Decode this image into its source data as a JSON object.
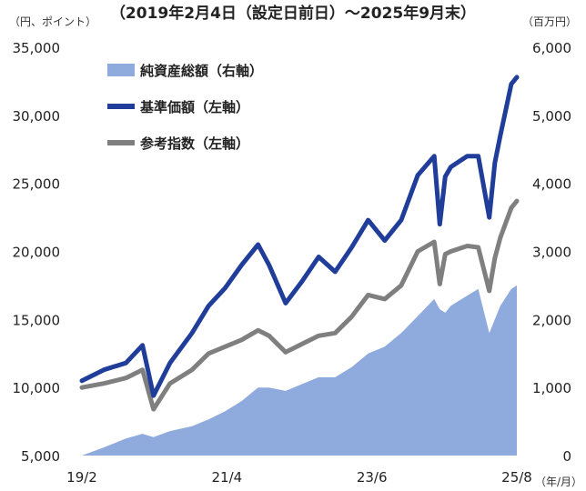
{
  "chart_data": {
    "type": "line",
    "title": "（2019年2月4日（設定日前日）～2025年9月末）",
    "left_axis_unit": "（円、ポイント）",
    "right_axis_unit": "（百万円）",
    "x_axis_unit": "（年/月）",
    "x_tick_labels": [
      "19/2",
      "21/4",
      "23/6",
      "25/8"
    ],
    "left_ylim": [
      5000,
      35000
    ],
    "left_ticks": [
      "5,000",
      "10,000",
      "15,000",
      "20,000",
      "25,000",
      "30,000",
      "35,000"
    ],
    "right_ylim": [
      0,
      6000
    ],
    "right_ticks": [
      "0",
      "1,000",
      "2,000",
      "3,000",
      "4,000",
      "5,000",
      "6,000"
    ],
    "grid": false,
    "legend_position": "top-left",
    "colors": {
      "nav": "#1f3d99",
      "index": "#7f7f7f",
      "assets": "#8faadc"
    },
    "x": [
      "2019-02",
      "2019-06",
      "2019-10",
      "2020-01",
      "2020-03",
      "2020-06",
      "2020-10",
      "2021-01",
      "2021-04",
      "2021-07",
      "2021-10",
      "2021-12",
      "2022-03",
      "2022-06",
      "2022-09",
      "2022-12",
      "2023-03",
      "2023-06",
      "2023-09",
      "2023-12",
      "2024-03",
      "2024-06",
      "2024-07",
      "2024-08",
      "2024-09",
      "2024-12",
      "2025-02",
      "2025-04",
      "2025-05",
      "2025-06",
      "2025-08",
      "2025-09"
    ],
    "series": [
      {
        "name": "純資産総額（右軸）",
        "type": "area",
        "axis": "right",
        "values": [
          0,
          120,
          250,
          320,
          270,
          360,
          430,
          530,
          650,
          800,
          1000,
          1000,
          950,
          1050,
          1150,
          1150,
          1300,
          1500,
          1600,
          1800,
          2050,
          2300,
          2150,
          2100,
          2200,
          2350,
          2450,
          1800,
          2000,
          2200,
          2450,
          2500
        ]
      },
      {
        "name": "基準価額（左軸）",
        "type": "line",
        "axis": "left",
        "values": [
          10500,
          11300,
          11800,
          13100,
          9400,
          11800,
          14000,
          16000,
          17300,
          19000,
          20500,
          19000,
          16200,
          17800,
          19600,
          18500,
          20300,
          22300,
          20800,
          22300,
          25600,
          27000,
          22000,
          25500,
          26200,
          27000,
          27000,
          22500,
          26500,
          28500,
          32300,
          32800
        ]
      },
      {
        "name": "参考指数（左軸）",
        "type": "line",
        "axis": "left",
        "values": [
          10000,
          10300,
          10700,
          11300,
          8400,
          10300,
          11300,
          12500,
          13000,
          13500,
          14200,
          13800,
          12600,
          13200,
          13800,
          14000,
          15200,
          16800,
          16500,
          17500,
          20000,
          20700,
          17600,
          19800,
          20000,
          20400,
          20300,
          17100,
          19500,
          21000,
          23200,
          23700
        ]
      }
    ]
  }
}
